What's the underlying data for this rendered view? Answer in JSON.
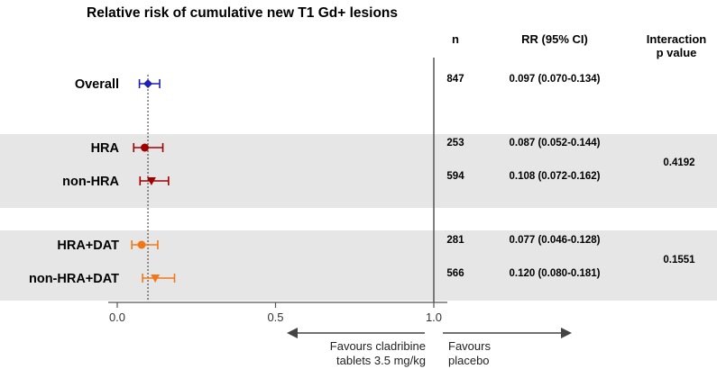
{
  "chart_data": {
    "type": "forest",
    "title": "Relative risk of cumulative new T1 Gd+ lesions",
    "columns": {
      "n": "n",
      "rr": "RR (95% CI)",
      "interaction_line1": "Interaction",
      "interaction_line2": "p value"
    },
    "xlim": [
      0.0,
      1.0
    ],
    "xticks": [
      "0.0",
      "0.5",
      "1.0"
    ],
    "xtick_values": [
      0.0,
      0.5,
      1.0
    ],
    "reference_line": 1.0,
    "overall_reference_line": 0.097,
    "rows": [
      {
        "label": "Overall",
        "n": "847",
        "rr_text": "0.097 (0.070-0.134)",
        "rr": 0.097,
        "lo": 0.07,
        "hi": 0.134,
        "marker": "diamond",
        "color": "#1f1fb4"
      },
      {
        "label": "HRA",
        "n": "253",
        "rr_text": "0.087 (0.052-0.144)",
        "rr": 0.087,
        "lo": 0.052,
        "hi": 0.144,
        "marker": "circle",
        "color": "#a00000"
      },
      {
        "label": "non-HRA",
        "n": "594",
        "rr_text": "0.108 (0.072-0.162)",
        "rr": 0.108,
        "lo": 0.072,
        "hi": 0.162,
        "marker": "triangle-down",
        "color": "#a00000"
      },
      {
        "label": "HRA+DAT",
        "n": "281",
        "rr_text": "0.077 (0.046-0.128)",
        "rr": 0.077,
        "lo": 0.046,
        "hi": 0.128,
        "marker": "circle",
        "color": "#f07818"
      },
      {
        "label": "non-HRA+DAT",
        "n": "566",
        "rr_text": "0.120 (0.080-0.181)",
        "rr": 0.12,
        "lo": 0.08,
        "hi": 0.181,
        "marker": "triangle-down",
        "color": "#f07818"
      }
    ],
    "interaction_p": [
      "0.4192",
      "0.1551"
    ],
    "favours_left_line1": "Favours cladribine",
    "favours_left_line2": "tablets 3.5 mg/kg",
    "favours_right_line1": "Favours",
    "favours_right_line2": "placebo",
    "band_color": "#e6e6e6"
  }
}
